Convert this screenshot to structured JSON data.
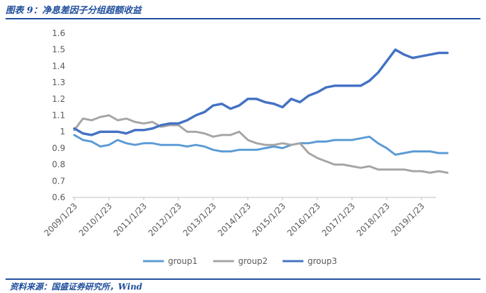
{
  "header": {
    "title": "图表 9：净息差因子分组超额收益"
  },
  "footer": {
    "source": "资料来源：国盛证券研究所，Wind"
  },
  "chart_data": {
    "type": "line",
    "title": "图表 9：净息差因子分组超额收益",
    "xlabel": "",
    "ylabel": "",
    "ylim": [
      0.6,
      1.6
    ],
    "y_ticks": [
      "0.6",
      "0.7",
      "0.8",
      "0.9",
      "1",
      "1.1",
      "1.2",
      "1.3",
      "1.4",
      "1.5",
      "1.6"
    ],
    "x_ticks": [
      "2009/1/23",
      "2010/1/23",
      "2011/1/23",
      "2012/1/23",
      "2013/1/23",
      "2014/1/23",
      "2015/1/23",
      "2016/1/23",
      "2017/1/23",
      "2018/1/23",
      "2019/1/23"
    ],
    "legend_position": "bottom",
    "grid": false,
    "x": [
      "2009/1",
      "2009/4",
      "2009/7",
      "2009/10",
      "2010/1",
      "2010/4",
      "2010/7",
      "2010/10",
      "2011/1",
      "2011/4",
      "2011/7",
      "2011/10",
      "2012/1",
      "2012/4",
      "2012/7",
      "2012/10",
      "2013/1",
      "2013/4",
      "2013/7",
      "2013/10",
      "2014/1",
      "2014/4",
      "2014/7",
      "2014/10",
      "2015/1",
      "2015/4",
      "2015/7",
      "2015/10",
      "2016/1",
      "2016/4",
      "2016/7",
      "2016/10",
      "2017/1",
      "2017/4",
      "2017/7",
      "2017/10",
      "2018/1",
      "2018/4",
      "2018/7",
      "2018/10",
      "2019/1",
      "2019/4",
      "2019/7",
      "2019/10"
    ],
    "series": [
      {
        "name": "group1",
        "color": "#5b9bd5",
        "values": [
          0.98,
          0.95,
          0.94,
          0.91,
          0.92,
          0.95,
          0.93,
          0.92,
          0.93,
          0.93,
          0.92,
          0.92,
          0.92,
          0.91,
          0.92,
          0.91,
          0.89,
          0.88,
          0.88,
          0.89,
          0.89,
          0.89,
          0.9,
          0.91,
          0.9,
          0.92,
          0.93,
          0.93,
          0.94,
          0.94,
          0.95,
          0.95,
          0.95,
          0.96,
          0.97,
          0.93,
          0.9,
          0.86,
          0.87,
          0.88,
          0.88,
          0.88,
          0.87,
          0.87
        ]
      },
      {
        "name": "group2",
        "color": "#a5a5a5",
        "values": [
          1.01,
          1.08,
          1.07,
          1.09,
          1.1,
          1.07,
          1.08,
          1.06,
          1.05,
          1.06,
          1.03,
          1.04,
          1.04,
          1.0,
          1.0,
          0.99,
          0.97,
          0.98,
          0.98,
          1.0,
          0.95,
          0.93,
          0.92,
          0.92,
          0.93,
          0.92,
          0.93,
          0.87,
          0.84,
          0.82,
          0.8,
          0.8,
          0.79,
          0.78,
          0.79,
          0.77,
          0.77,
          0.77,
          0.77,
          0.76,
          0.76,
          0.75,
          0.76,
          0.75
        ]
      },
      {
        "name": "group3",
        "color": "#4472c4",
        "values": [
          1.02,
          0.99,
          0.98,
          1.0,
          1.0,
          1.0,
          0.99,
          1.01,
          1.01,
          1.02,
          1.04,
          1.05,
          1.05,
          1.07,
          1.1,
          1.12,
          1.16,
          1.17,
          1.14,
          1.16,
          1.2,
          1.2,
          1.18,
          1.17,
          1.15,
          1.2,
          1.18,
          1.22,
          1.24,
          1.27,
          1.28,
          1.28,
          1.28,
          1.28,
          1.31,
          1.36,
          1.43,
          1.5,
          1.47,
          1.45,
          1.46,
          1.47,
          1.48,
          1.48
        ]
      }
    ]
  }
}
